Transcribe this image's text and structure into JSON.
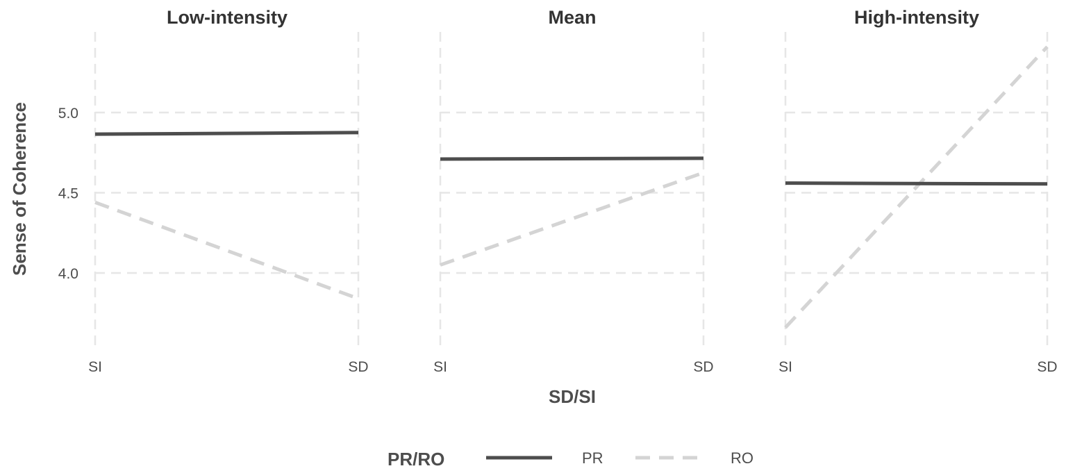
{
  "chart_data": {
    "type": "line",
    "facet_variable": "",
    "facets": [
      {
        "title": "Low-intensity",
        "series": [
          {
            "name": "PR",
            "values": [
              4.865,
              4.875
            ]
          },
          {
            "name": "RO",
            "values": [
              4.44,
              3.84
            ]
          }
        ]
      },
      {
        "title": "Mean",
        "series": [
          {
            "name": "PR",
            "values": [
              4.71,
              4.715
            ]
          },
          {
            "name": "RO",
            "values": [
              4.05,
              4.625
            ]
          }
        ]
      },
      {
        "title": "High-intensity",
        "series": [
          {
            "name": "PR",
            "values": [
              4.56,
              4.555
            ]
          },
          {
            "name": "RO",
            "values": [
              3.66,
              5.41
            ]
          }
        ]
      }
    ],
    "categories": [
      "SI",
      "SD"
    ],
    "xlabel": "SD/SI",
    "ylabel": "Sense of Coherence",
    "yticks": [
      4.0,
      4.5,
      5.0
    ],
    "ytick_labels": [
      "4.0",
      "4.5",
      "5.0"
    ],
    "ylim": [
      3.53,
      5.52
    ],
    "grid": true,
    "legend": {
      "title": "PR/RO",
      "position": "bottom",
      "entries": [
        {
          "label": "PR",
          "color": "#4d4d4d",
          "linetype": "solid"
        },
        {
          "label": "RO",
          "color": "#d4d4d4",
          "linetype": "dashed"
        }
      ]
    },
    "colors": {
      "PR": "#4d4d4d",
      "RO": "#d4d4d4",
      "grid": "#e6e6e6"
    }
  }
}
